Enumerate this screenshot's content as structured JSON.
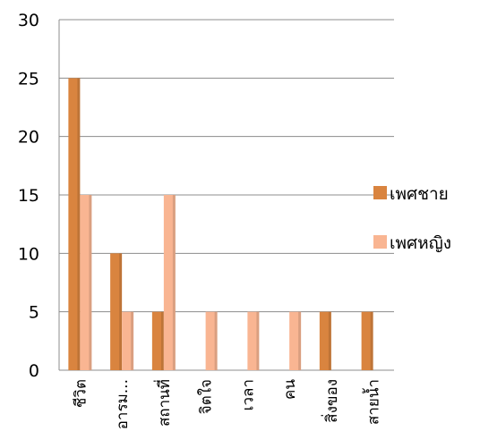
{
  "chart_data": {
    "type": "bar",
    "title": "",
    "xlabel": "",
    "ylabel": "",
    "ylim": [
      0,
      30
    ],
    "yticks": [
      0,
      5,
      10,
      15,
      20,
      25,
      30
    ],
    "grid": "horizontal",
    "legend_position": "right",
    "categories": [
      "ชีวิต",
      "อารม...",
      "สถานที่",
      "จิตใจ",
      "เวลา",
      "คน",
      "สิ่งของ",
      "สายน้ำ"
    ],
    "series": [
      {
        "name": "เพศชาย",
        "color": "#D9843F",
        "values": [
          25,
          10,
          5,
          0,
          0,
          0,
          5,
          5
        ]
      },
      {
        "name": "เพศหญิง",
        "color": "#F9B592",
        "values": [
          15,
          5,
          15,
          5,
          5,
          5,
          0,
          0
        ]
      }
    ]
  }
}
